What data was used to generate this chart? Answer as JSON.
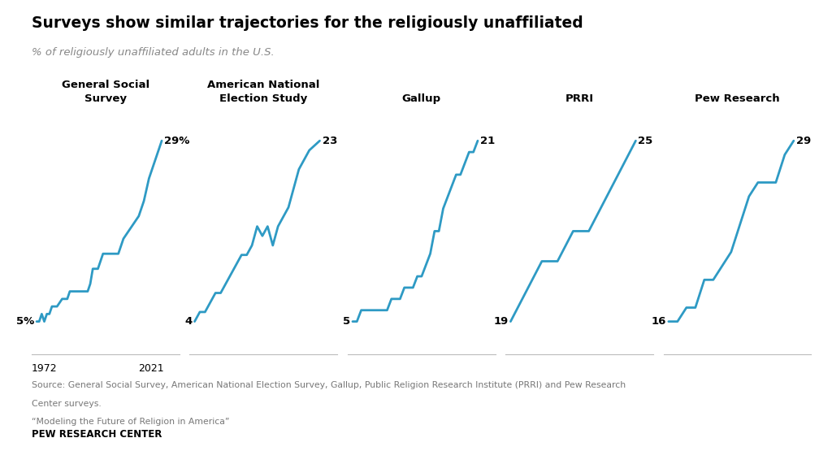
{
  "title": "Surveys show similar trajectories for the religiously unaffiliated",
  "subtitle": "% of religiously unaffiliated adults in the U.S.",
  "source_line1": "Source: General Social Survey, American National Election Survey, Gallup, Public Religion Research Institute (PRRI) and Pew Research",
  "source_line2": "Center surveys.",
  "source_line3": "“Modeling the Future of Religion in America”",
  "footer": "PEW RESEARCH CENTER",
  "line_color": "#2E9AC4",
  "bg_color": "#FFFFFF",
  "panels": [
    {
      "title": "General Social\nSurvey",
      "start_label": "5%",
      "end_label": "29%",
      "show_x_labels": true,
      "x_label_start": "1972",
      "x_label_end": "2021",
      "data_x": [
        1972,
        1973,
        1974,
        1975,
        1976,
        1977,
        1978,
        1980,
        1982,
        1983,
        1984,
        1985,
        1986,
        1987,
        1988,
        1989,
        1990,
        1991,
        1992,
        1993,
        1994,
        1996,
        1998,
        2000,
        2002,
        2004,
        2006,
        2008,
        2010,
        2012,
        2014,
        2016,
        2018,
        2021
      ],
      "data_y": [
        5,
        5,
        6,
        5,
        6,
        6,
        7,
        7,
        8,
        8,
        8,
        9,
        9,
        9,
        9,
        9,
        9,
        9,
        9,
        10,
        12,
        12,
        14,
        14,
        14,
        14,
        16,
        17,
        18,
        19,
        21,
        24,
        26,
        29
      ]
    },
    {
      "title": "American National\nElection Study",
      "start_label": "4",
      "end_label": "23",
      "show_x_labels": false,
      "x_label_start": "",
      "x_label_end": "",
      "data_x": [
        1972,
        1974,
        1976,
        1978,
        1980,
        1982,
        1984,
        1986,
        1988,
        1990,
        1992,
        1994,
        1996,
        1998,
        2000,
        2002,
        2004,
        2008,
        2012,
        2016,
        2020
      ],
      "data_y": [
        4,
        5,
        5,
        6,
        7,
        7,
        8,
        9,
        10,
        11,
        11,
        12,
        14,
        13,
        14,
        12,
        14,
        16,
        20,
        22,
        23
      ]
    },
    {
      "title": "Gallup",
      "start_label": "5",
      "end_label": "21",
      "show_x_labels": false,
      "x_label_start": "",
      "x_label_end": "",
      "data_x": [
        1992,
        1993,
        1994,
        1995,
        1996,
        1997,
        1998,
        1999,
        2000,
        2001,
        2002,
        2003,
        2004,
        2005,
        2006,
        2007,
        2008,
        2009,
        2010,
        2011,
        2012,
        2013,
        2014,
        2015,
        2016,
        2017,
        2018,
        2019,
        2020,
        2021
      ],
      "data_y": [
        5,
        5,
        6,
        6,
        6,
        6,
        6,
        6,
        6,
        7,
        7,
        7,
        8,
        8,
        8,
        9,
        9,
        10,
        11,
        13,
        13,
        15,
        16,
        17,
        18,
        18,
        19,
        20,
        20,
        21
      ]
    },
    {
      "title": "PRRI",
      "start_label": "19",
      "end_label": "25",
      "show_x_labels": false,
      "x_label_start": "",
      "x_label_end": "",
      "data_x": [
        2013,
        2014,
        2015,
        2016,
        2017,
        2018,
        2019,
        2020,
        2021
      ],
      "data_y": [
        19,
        20,
        21,
        21,
        22,
        22,
        23,
        24,
        25
      ]
    },
    {
      "title": "Pew Research",
      "start_label": "16",
      "end_label": "29",
      "show_x_labels": false,
      "x_label_start": "",
      "x_label_end": "",
      "data_x": [
        2007,
        2008,
        2009,
        2010,
        2011,
        2012,
        2013,
        2014,
        2015,
        2016,
        2017,
        2018,
        2019,
        2020,
        2021
      ],
      "data_y": [
        16,
        16,
        17,
        17,
        19,
        19,
        20,
        21,
        23,
        25,
        26,
        26,
        26,
        28,
        29
      ]
    }
  ]
}
